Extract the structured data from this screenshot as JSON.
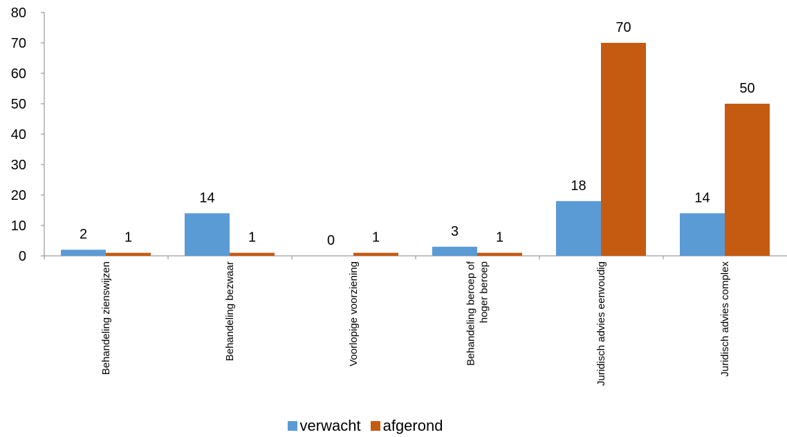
{
  "chart_data": {
    "type": "bar",
    "categories": [
      [
        "Behandeling zienswijzen"
      ],
      [
        "Behandeling bezwaar"
      ],
      [
        "Voorlopige voorziening"
      ],
      [
        "Behandeling beroep of",
        "hoger beroep"
      ],
      [
        "Juridisch advies eenvoudig"
      ],
      [
        "Juridisch advies complex"
      ]
    ],
    "series": [
      {
        "name": "verwacht",
        "color": "#5B9BD5",
        "values": [
          2,
          14,
          0,
          3,
          18,
          14
        ]
      },
      {
        "name": "afgerond",
        "color": "#C55A11",
        "values": [
          1,
          1,
          1,
          1,
          70,
          50
        ]
      }
    ],
    "ylim": [
      0,
      80
    ],
    "yticks": [
      "0",
      "10",
      "20",
      "30",
      "40",
      "50",
      "60",
      "70",
      "80"
    ],
    "grid": false,
    "legend_position": "bottom",
    "data_labels": true
  }
}
